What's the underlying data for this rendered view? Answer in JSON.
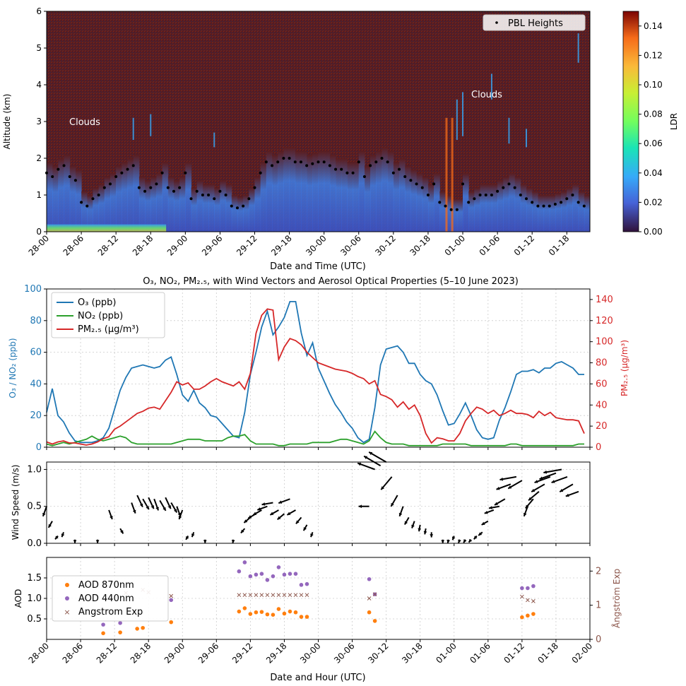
{
  "colors": {
    "o3": "#1f77b4",
    "no2": "#2ca02c",
    "pm25": "#d62728",
    "aod870": "#ff7f0e",
    "aod440": "#9467bd",
    "angstrom": "#8c564b",
    "lidar_bg": "#5a1c1e",
    "pbl": "#000000"
  },
  "chart_data": [
    {
      "type": "heatmap",
      "title": "",
      "xlabel": "Date and Time (UTC)",
      "ylabel": "Altitude (km)",
      "ylim": [
        0,
        6
      ],
      "yticks": [
        "0",
        "1",
        "2",
        "3",
        "4",
        "5",
        "6"
      ],
      "xticks": [
        "28-00",
        "28-06",
        "28-12",
        "28-18",
        "29-00",
        "29-06",
        "29-12",
        "29-18",
        "30-00",
        "30-06",
        "30-12",
        "30-18",
        "01-00",
        "01-06",
        "01-12",
        "01-18"
      ],
      "colorbar": {
        "label": "LDR",
        "range": [
          0,
          0.15
        ],
        "ticks": [
          "0.00",
          "0.02",
          "0.04",
          "0.06",
          "0.08",
          "0.10",
          "0.12",
          "0.14"
        ]
      },
      "legend": {
        "position": "top-right",
        "entries": [
          "PBL Heights"
        ]
      },
      "annotations": [
        "Clouds",
        "Clouds"
      ],
      "pbl_series": {
        "name": "PBL Heights",
        "x_hours": [
          0,
          1,
          2,
          3,
          4,
          5,
          6,
          7,
          8,
          9,
          10,
          11,
          12,
          13,
          14,
          15,
          16,
          17,
          18,
          19,
          20,
          21,
          22,
          23,
          24,
          25,
          26,
          27,
          28,
          29,
          30,
          31,
          32,
          33,
          34,
          35,
          36,
          37,
          38,
          39,
          40,
          41,
          42,
          43,
          44,
          45,
          46,
          47,
          48,
          49,
          50,
          51,
          52,
          53,
          54,
          55,
          56,
          57,
          58,
          59,
          60,
          61,
          62,
          63,
          64,
          65,
          66,
          67,
          68,
          69,
          70,
          71,
          72,
          73,
          74,
          75,
          76,
          77,
          78,
          79,
          80,
          81,
          82,
          83,
          84,
          85,
          86,
          87,
          88,
          89,
          90,
          91,
          92,
          93
        ],
        "y_km": [
          1.6,
          1.5,
          1.7,
          1.8,
          1.5,
          1.4,
          0.8,
          0.7,
          0.9,
          1.0,
          1.2,
          1.3,
          1.5,
          1.6,
          1.7,
          1.8,
          1.2,
          1.1,
          1.2,
          1.3,
          1.6,
          1.2,
          1.1,
          1.2,
          1.6,
          0.9,
          1.1,
          1.0,
          1.0,
          0.9,
          1.1,
          1.0,
          0.7,
          0.65,
          0.7,
          0.9,
          1.2,
          1.6,
          1.9,
          1.8,
          1.9,
          2.0,
          2.0,
          1.9,
          1.9,
          1.8,
          1.85,
          1.9,
          1.9,
          1.8,
          1.7,
          1.7,
          1.6,
          1.6,
          1.9,
          1.5,
          1.8,
          1.9,
          2.0,
          1.9,
          1.6,
          1.7,
          1.5,
          1.4,
          1.3,
          1.2,
          1.0,
          1.3,
          0.8,
          0.7,
          0.6,
          0.6,
          1.3,
          0.8,
          0.9,
          1.0,
          1.0,
          1.0,
          1.1,
          1.2,
          1.3,
          1.2,
          1.0,
          0.9,
          0.8,
          0.7,
          0.7,
          0.7,
          0.75,
          0.8,
          0.9,
          1.0,
          0.8,
          0.7
        ]
      }
    },
    {
      "type": "line",
      "title": "O₃, NO₂, PM₂.₅, with Wind Vectors and Aerosol Optical Properties (5–10 June 2023)",
      "xlabel": "",
      "ylabel": "O₃ / NO₂ (ppb)",
      "ylabel_right": "PM₂.₅ (µg/m³)",
      "ylim": [
        0,
        100
      ],
      "ylim_right": [
        0,
        150
      ],
      "yticks": [
        "0",
        "20",
        "40",
        "60",
        "80",
        "100"
      ],
      "yticks_right": [
        "0",
        "20",
        "40",
        "60",
        "80",
        "100",
        "120",
        "140"
      ],
      "legend": {
        "position": "top-left",
        "entries": [
          "O₃ (ppb)",
          "NO₂ (ppb)",
          "PM₂.₅ (µg/m³)"
        ]
      },
      "x_hours": [
        0,
        1,
        2,
        3,
        4,
        5,
        6,
        7,
        8,
        9,
        10,
        11,
        12,
        13,
        14,
        15,
        16,
        17,
        18,
        19,
        20,
        21,
        22,
        23,
        24,
        25,
        26,
        27,
        28,
        29,
        30,
        31,
        32,
        33,
        34,
        35,
        36,
        37,
        38,
        39,
        40,
        41,
        42,
        43,
        44,
        45,
        46,
        47,
        48,
        49,
        50,
        51,
        52,
        53,
        54,
        55,
        56,
        57,
        58,
        59,
        60,
        61,
        62,
        63,
        64,
        65,
        66,
        67,
        68,
        69,
        70,
        71,
        72,
        73,
        74,
        75,
        76,
        77,
        78,
        79,
        80,
        81,
        82,
        83,
        84,
        85,
        86,
        87,
        88,
        89,
        90,
        91,
        92,
        93,
        94,
        95
      ],
      "series": [
        {
          "name": "O₃ (ppb)",
          "values": [
            22,
            37,
            20,
            16,
            9,
            4,
            3,
            3,
            3,
            4,
            6,
            12,
            24,
            36,
            44,
            50,
            51,
            52,
            51,
            50,
            51,
            55,
            57,
            46,
            33,
            29,
            36,
            28,
            25,
            20,
            19,
            15,
            11,
            7,
            6,
            22,
            46,
            60,
            76,
            86,
            71,
            76,
            82,
            92,
            92,
            72,
            58,
            66,
            50,
            42,
            34,
            27,
            22,
            16,
            12,
            6,
            3,
            5,
            25,
            52,
            62,
            63,
            64,
            60,
            53,
            53,
            46,
            42,
            40,
            33,
            23,
            14,
            15,
            21,
            28,
            20,
            11,
            6,
            5,
            6,
            17,
            25,
            35,
            46,
            48,
            48,
            49,
            47,
            50,
            50,
            53,
            54,
            52,
            50,
            46,
            46
          ]
        },
        {
          "name": "NO₂ (ppb)",
          "values": [
            2,
            1,
            2,
            3,
            2,
            3,
            4,
            5,
            7,
            5,
            4,
            5,
            6,
            7,
            6,
            3,
            2,
            2,
            2,
            2,
            2,
            2,
            2,
            3,
            4,
            5,
            5,
            5,
            4,
            4,
            4,
            4,
            6,
            7,
            7,
            8,
            4,
            2,
            2,
            2,
            2,
            1,
            1,
            2,
            2,
            2,
            2,
            3,
            3,
            3,
            3,
            4,
            5,
            5,
            4,
            3,
            2,
            4,
            10,
            6,
            3,
            2,
            2,
            2,
            1,
            1,
            1,
            1,
            1,
            1,
            2,
            2,
            2,
            2,
            2,
            1,
            1,
            1,
            1,
            1,
            1,
            1,
            2,
            2,
            1,
            1,
            1,
            1,
            1,
            1,
            1,
            1,
            1,
            1,
            2,
            2
          ]
        },
        {
          "name": "PM₂.₅ (µg/m³)",
          "values": [
            5,
            3,
            5,
            6,
            4,
            4,
            3,
            2,
            3,
            5,
            8,
            10,
            17,
            20,
            24,
            28,
            32,
            34,
            37,
            38,
            36,
            44,
            52,
            62,
            59,
            61,
            55,
            55,
            58,
            62,
            65,
            62,
            60,
            58,
            62,
            55,
            70,
            108,
            125,
            131,
            130,
            83,
            95,
            103,
            101,
            97,
            90,
            85,
            80,
            78,
            76,
            74,
            73,
            72,
            70,
            67,
            65,
            60,
            63,
            50,
            48,
            45,
            38,
            43,
            36,
            40,
            30,
            13,
            4,
            9,
            8,
            6,
            6,
            13,
            25,
            32,
            38,
            36,
            32,
            35,
            30,
            32,
            35,
            32,
            32,
            31,
            28,
            34,
            30,
            33,
            28,
            27,
            26,
            26,
            25,
            13
          ]
        }
      ]
    },
    {
      "type": "scatter",
      "title": "",
      "xlabel": "",
      "ylabel": "Wind Speed (m/s)",
      "ylim": [
        0,
        1.1
      ],
      "yticks": [
        "0.0",
        "0.5",
        "1.0"
      ],
      "x_hours": [
        0,
        1,
        2,
        3,
        5,
        9,
        11,
        13,
        15,
        16,
        17,
        18,
        19,
        20,
        21,
        22,
        23,
        24,
        25,
        26,
        28,
        33,
        35,
        36,
        37,
        38,
        39,
        40,
        41,
        42,
        43,
        44,
        45,
        46,
        47,
        57,
        58,
        59,
        60,
        61,
        62,
        63,
        64,
        65,
        66,
        67,
        68,
        70,
        71,
        72,
        73,
        74,
        75,
        76,
        77,
        78,
        79,
        80,
        81,
        82,
        83,
        84,
        85,
        86,
        87,
        88,
        89,
        90,
        91,
        92,
        93,
        94
      ],
      "values": [
        0.5,
        0.3,
        0.1,
        0.15,
        0.05,
        0.05,
        0.45,
        0.2,
        0.55,
        0.65,
        0.6,
        0.62,
        0.6,
        0.58,
        0.62,
        0.55,
        0.5,
        0.45,
        0.1,
        0.15,
        0.05,
        0.05,
        0.2,
        0.35,
        0.4,
        0.45,
        0.5,
        0.55,
        0.45,
        0.4,
        0.6,
        0.45,
        0.35,
        0.25,
        0.15,
        0.5,
        1.0,
        1.05,
        1.1,
        0.9,
        0.65,
        0.5,
        0.35,
        0.3,
        0.25,
        0.2,
        0.15,
        0.05,
        0.05,
        0.1,
        0.05,
        0.05,
        0.05,
        0.1,
        0.15,
        0.3,
        0.45,
        0.5,
        0.6,
        0.8,
        0.9,
        0.85,
        0.5,
        0.6,
        0.7,
        0.8,
        0.9,
        0.95,
        1.0,
        0.9,
        0.8,
        0.7
      ],
      "directions_deg": [
        200,
        210,
        220,
        200,
        180,
        180,
        160,
        150,
        160,
        155,
        150,
        155,
        160,
        150,
        155,
        150,
        160,
        200,
        210,
        200,
        180,
        190,
        220,
        230,
        240,
        240,
        250,
        260,
        240,
        230,
        250,
        240,
        220,
        210,
        200,
        270,
        290,
        300,
        300,
        220,
        210,
        200,
        210,
        200,
        190,
        190,
        180,
        180,
        190,
        200,
        200,
        210,
        220,
        220,
        230,
        240,
        250,
        260,
        240,
        250,
        260,
        240,
        200,
        220,
        230,
        240,
        250,
        250,
        260,
        250,
        240,
        250
      ]
    },
    {
      "type": "scatter",
      "title": "",
      "xlabel": "Date and Hour (UTC)",
      "ylabel": "AOD",
      "ylabel_right": "Ångström Exp",
      "ylim": [
        0,
        2.0
      ],
      "ylim_right": [
        0,
        2.4
      ],
      "yticks": [
        "0.5",
        "1.0",
        "1.5"
      ],
      "yticks_right": [
        "0",
        "1",
        "2"
      ],
      "xticks": [
        "28-00",
        "28-06",
        "28-12",
        "28-18",
        "29-00",
        "29-06",
        "29-12",
        "29-18",
        "30-00",
        "30-06",
        "30-12",
        "30-18",
        "01-00",
        "01-06",
        "01-12",
        "01-18",
        "02-00"
      ],
      "legend": {
        "position": "left",
        "entries": [
          "AOD 870nm",
          "AOD 440nm",
          "Angstrom Exp"
        ]
      },
      "series": [
        {
          "name": "AOD 870nm",
          "x_hours": [
            10,
            13,
            16,
            17,
            22,
            34,
            35,
            36,
            37,
            38,
            39,
            40,
            41,
            42,
            43,
            44,
            45,
            46,
            57,
            58,
            84,
            85,
            86
          ],
          "values": [
            0.15,
            0.17,
            0.26,
            0.28,
            0.42,
            0.68,
            0.76,
            0.62,
            0.66,
            0.67,
            0.61,
            0.6,
            0.74,
            0.63,
            0.68,
            0.66,
            0.55,
            0.55,
            0.66,
            0.45,
            0.54,
            0.58,
            0.62
          ]
        },
        {
          "name": "AOD 440nm",
          "x_hours": [
            10,
            13,
            22,
            34,
            35,
            36,
            37,
            38,
            39,
            40,
            41,
            42,
            43,
            44,
            45,
            46,
            57,
            58,
            84,
            85,
            86
          ],
          "values": [
            0.36,
            0.4,
            0.96,
            1.66,
            1.88,
            1.54,
            1.58,
            1.6,
            1.45,
            1.54,
            1.76,
            1.58,
            1.6,
            1.6,
            1.33,
            1.35,
            1.47,
            1.1,
            1.25,
            1.25,
            1.3
          ]
        },
        {
          "name": "Angstrom Exp",
          "x_hours": [
            14,
            17,
            18,
            22,
            34,
            35,
            36,
            37,
            38,
            39,
            40,
            41,
            42,
            43,
            44,
            45,
            46,
            57,
            58,
            84,
            85,
            86
          ],
          "values": [
            1.36,
            1.45,
            1.38,
            1.27,
            1.3,
            1.3,
            1.3,
            1.3,
            1.3,
            1.3,
            1.3,
            1.3,
            1.3,
            1.3,
            1.3,
            1.3,
            1.3,
            1.2,
            1.32,
            1.25,
            1.15,
            1.12
          ]
        }
      ]
    }
  ]
}
